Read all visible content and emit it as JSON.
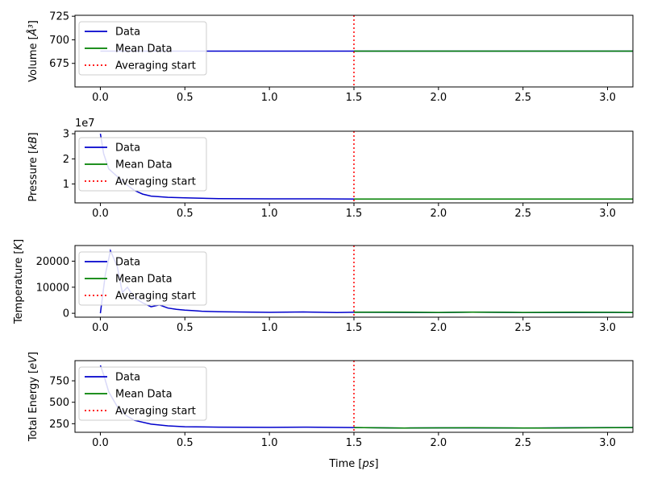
{
  "chart_data": [
    {
      "type": "line",
      "ylabel_main": "Volume [",
      "ylabel_unit": "Å³",
      "ylabel_end": "]",
      "xlim": [
        -0.15,
        3.15
      ],
      "ylim": [
        650,
        726
      ],
      "yticks": [
        675,
        700,
        725
      ],
      "ytick_labels": [
        "675",
        "700",
        "725"
      ],
      "xticks": [
        0,
        0.5,
        1,
        1.5,
        2,
        2.5,
        3
      ],
      "xtick_labels": [
        "0.0",
        "0.5",
        "1.0",
        "1.5",
        "2.0",
        "2.5",
        "3.0"
      ],
      "averaging_start": 1.5,
      "offset_text": "",
      "series": [
        {
          "name": "Data",
          "color": "#0000cc",
          "x": [
            0,
            0.5,
            1.0,
            1.5,
            2.0,
            2.5,
            3.0,
            3.15
          ],
          "y": [
            688,
            688,
            688,
            688,
            688,
            688,
            688,
            688
          ]
        },
        {
          "name": "Mean Data",
          "color": "#008000",
          "x": [
            1.5,
            3.15
          ],
          "y": [
            688,
            688
          ]
        }
      ]
    },
    {
      "type": "line",
      "ylabel_main": "Pressure [",
      "ylabel_unit": "kB",
      "ylabel_end": "]",
      "xlim": [
        -0.15,
        3.15
      ],
      "ylim": [
        0.25,
        3.1
      ],
      "yticks": [
        1,
        2,
        3
      ],
      "ytick_labels": [
        "1",
        "2",
        "3"
      ],
      "xticks": [
        0,
        0.5,
        1,
        1.5,
        2,
        2.5,
        3
      ],
      "xtick_labels": [
        "0.0",
        "0.5",
        "1.0",
        "1.5",
        "2.0",
        "2.5",
        "3.0"
      ],
      "averaging_start": 1.5,
      "offset_text": "1e7",
      "series": [
        {
          "name": "Data",
          "color": "#0000cc",
          "x": [
            0,
            0.02,
            0.05,
            0.1,
            0.15,
            0.2,
            0.25,
            0.3,
            0.4,
            0.5,
            0.7,
            1.0,
            1.3,
            1.5,
            2.0,
            2.5,
            3.0,
            3.15
          ],
          "y": [
            3.0,
            2.2,
            1.6,
            1.3,
            1.0,
            0.75,
            0.6,
            0.52,
            0.47,
            0.45,
            0.42,
            0.41,
            0.41,
            0.4,
            0.4,
            0.4,
            0.4,
            0.4
          ]
        },
        {
          "name": "Mean Data",
          "color": "#008000",
          "x": [
            1.5,
            3.15
          ],
          "y": [
            0.4,
            0.4
          ]
        }
      ]
    },
    {
      "type": "line",
      "ylabel_main": "Temperature [",
      "ylabel_unit": "K",
      "ylabel_end": "]",
      "xlim": [
        -0.15,
        3.15
      ],
      "ylim": [
        -1500,
        26000
      ],
      "yticks": [
        0,
        10000,
        20000
      ],
      "ytick_labels": [
        "0",
        "10000",
        "20000"
      ],
      "xticks": [
        0,
        0.5,
        1,
        1.5,
        2,
        2.5,
        3
      ],
      "xtick_labels": [
        "0.0",
        "0.5",
        "1.0",
        "1.5",
        "2.0",
        "2.5",
        "3.0"
      ],
      "averaging_start": 1.5,
      "offset_text": "",
      "series": [
        {
          "name": "Data",
          "color": "#0000cc",
          "x": [
            0,
            0.03,
            0.06,
            0.1,
            0.13,
            0.16,
            0.2,
            0.25,
            0.3,
            0.35,
            0.4,
            0.45,
            0.5,
            0.55,
            0.6,
            0.7,
            0.8,
            1.0,
            1.2,
            1.4,
            1.5,
            2.0,
            2.2,
            2.5,
            3.0,
            3.15
          ],
          "y": [
            0,
            15000,
            24000,
            18000,
            8000,
            10000,
            6000,
            4000,
            2500,
            3200,
            2000,
            1500,
            1200,
            1000,
            800,
            600,
            500,
            350,
            500,
            300,
            400,
            300,
            450,
            300,
            320,
            300
          ]
        },
        {
          "name": "Mean Data",
          "color": "#008000",
          "x": [
            1.5,
            1.7,
            2.0,
            2.2,
            2.5,
            2.8,
            3.15
          ],
          "y": [
            380,
            420,
            330,
            450,
            320,
            380,
            330
          ]
        }
      ]
    },
    {
      "type": "line",
      "ylabel_main": "Total Energy [",
      "ylabel_unit": "eV",
      "ylabel_end": "]",
      "xlim": [
        -0.15,
        3.15
      ],
      "ylim": [
        150,
        985
      ],
      "yticks": [
        250,
        500,
        750
      ],
      "ytick_labels": [
        "250",
        "500",
        "750"
      ],
      "xticks": [
        0,
        0.5,
        1,
        1.5,
        2,
        2.5,
        3
      ],
      "xtick_labels": [
        "0.0",
        "0.5",
        "1.0",
        "1.5",
        "2.0",
        "2.5",
        "3.0"
      ],
      "averaging_start": 1.5,
      "offset_text": "",
      "xlabel_main": "Time [",
      "xlabel_unit": "ps",
      "xlabel_end": "]",
      "series": [
        {
          "name": "Data",
          "color": "#0000cc",
          "x": [
            0,
            0.02,
            0.05,
            0.1,
            0.15,
            0.2,
            0.3,
            0.4,
            0.5,
            0.7,
            1.0,
            1.2,
            1.5,
            1.8,
            2.0,
            2.5,
            3.0,
            3.15
          ],
          "y": [
            930,
            820,
            620,
            450,
            350,
            290,
            245,
            225,
            215,
            210,
            207,
            210,
            205,
            200,
            202,
            200,
            205,
            205
          ]
        },
        {
          "name": "Mean Data",
          "color": "#008000",
          "x": [
            1.5,
            1.8,
            2.2,
            2.6,
            3.15
          ],
          "y": [
            205,
            200,
            203,
            199,
            205
          ]
        }
      ]
    }
  ],
  "legend": {
    "entries": [
      {
        "label": "Data",
        "color": "#0000cc",
        "style": "solid"
      },
      {
        "label": "Mean Data",
        "color": "#008000",
        "style": "solid"
      },
      {
        "label": "Averaging start",
        "color": "#ff0000",
        "style": "dotted"
      }
    ],
    "placement": "upper-left"
  }
}
